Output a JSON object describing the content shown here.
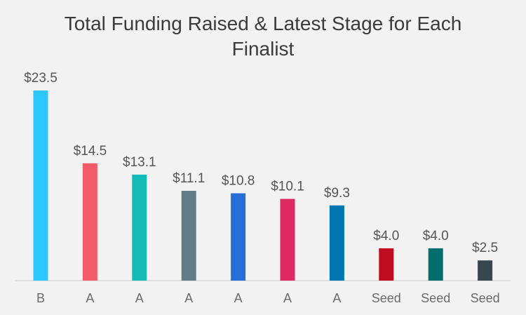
{
  "chart_data": {
    "type": "bar",
    "title": "Total Funding Raised & Latest Stage for Each Finalist",
    "xlabel": "",
    "ylabel": "",
    "categories": [
      "B",
      "A",
      "A",
      "A",
      "A",
      "A",
      "A",
      "Seed",
      "Seed",
      "Seed"
    ],
    "values": [
      23.5,
      14.5,
      13.1,
      11.1,
      10.8,
      10.1,
      9.3,
      4.0,
      4.0,
      2.5
    ],
    "value_labels": [
      "$23.5",
      "$14.5",
      "$13.1",
      "$11.1",
      "$10.8",
      "$10.1",
      "$9.3",
      "$4.0",
      "$4.0",
      "$2.5"
    ],
    "colors": [
      "#2ec6ff",
      "#f45b69",
      "#14bab5",
      "#607d87",
      "#266fd6",
      "#de2a62",
      "#0077b0",
      "#c10b1e",
      "#046e6e",
      "#37474f"
    ],
    "ylim": [
      0,
      23.5
    ],
    "grid": false,
    "legend": "none"
  }
}
